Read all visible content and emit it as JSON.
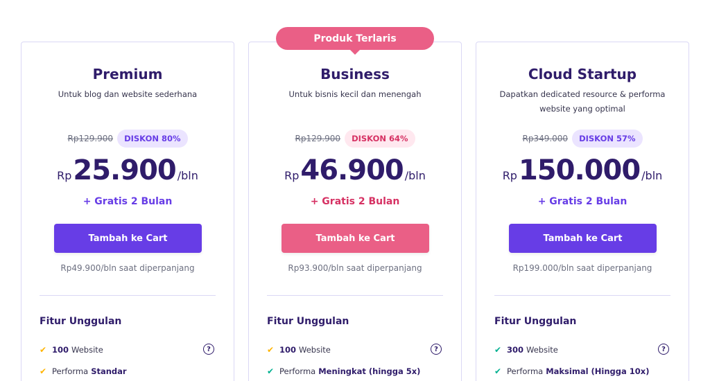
{
  "featured_badge": "Produk Terlaris",
  "plans": [
    {
      "name": "Premium",
      "description": "Untuk blog dan website sederhana",
      "old_price": "Rp129.900",
      "discount": "DISKON 80%",
      "currency": "Rp",
      "price": "25.900",
      "period": "/bln",
      "bonus": "+ Gratis 2 Bulan",
      "cta": "Tambah ke Cart",
      "renewal": "Rp49.900/bln saat diperpanjang",
      "features_title": "Fitur Unggulan",
      "features": [
        {
          "bold_first": true,
          "bold": "100",
          "text": "Website",
          "help": "?"
        },
        {
          "bold_first": false,
          "text": "Performa",
          "bold": "Standar"
        }
      ]
    },
    {
      "name": "Business",
      "description": "Untuk bisnis kecil dan menengah",
      "old_price": "Rp129.900",
      "discount": "DISKON 64%",
      "currency": "Rp",
      "price": "46.900",
      "period": "/bln",
      "bonus": "+ Gratis 2 Bulan",
      "cta": "Tambah ke Cart",
      "renewal": "Rp93.900/bln saat diperpanjang",
      "features_title": "Fitur Unggulan",
      "features": [
        {
          "bold_first": true,
          "bold": "100",
          "text": "Website",
          "help": "?"
        },
        {
          "bold_first": false,
          "text": "Performa",
          "bold": "Meningkat (hingga 5x)"
        }
      ]
    },
    {
      "name": "Cloud Startup",
      "description": "Dapatkan dedicated resource & performa website yang optimal",
      "old_price": "Rp349.000",
      "discount": "DISKON 57%",
      "currency": "Rp",
      "price": "150.000",
      "period": "/bln",
      "bonus": "+ Gratis 2 Bulan",
      "cta": "Tambah ke Cart",
      "renewal": "Rp199.000/bln saat diperpanjang",
      "features_title": "Fitur Unggulan",
      "features": [
        {
          "bold_first": true,
          "bold": "300",
          "text": "Website",
          "help": "?"
        },
        {
          "bold_first": false,
          "text": "Performa",
          "bold": "Maksimal (Hingga 10x)"
        }
      ]
    }
  ],
  "colors": {
    "primary": "#673de6",
    "featured": "#ea5f86",
    "text_dark": "#2f1c6a",
    "check_yellow": "#ffb400",
    "check_green": "#00b090"
  },
  "icons": {
    "check": "check-icon",
    "help": "help-circle-icon"
  }
}
